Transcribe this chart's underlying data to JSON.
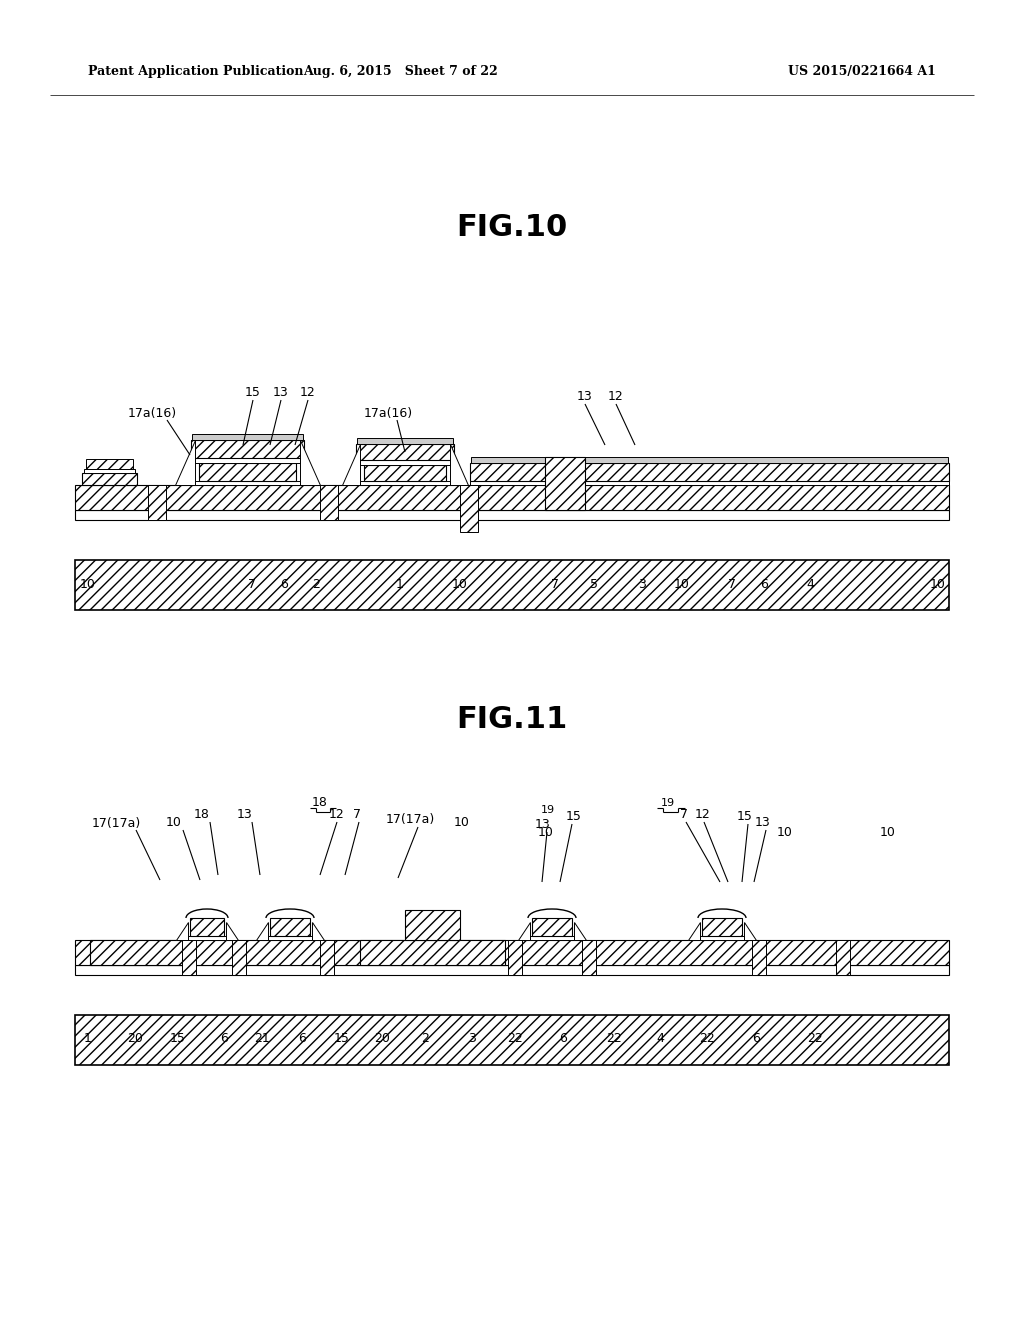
{
  "bg_color": "#ffffff",
  "header_left": "Patent Application Publication",
  "header_center": "Aug. 6, 2015   Sheet 7 of 22",
  "header_right": "US 2015/0221664 A1",
  "fig10_title": "FIG.10",
  "fig11_title": "FIG.11",
  "text_color": "#000000",
  "lw_thick": 1.2,
  "lw_thin": 0.8,
  "lw_med": 1.0
}
